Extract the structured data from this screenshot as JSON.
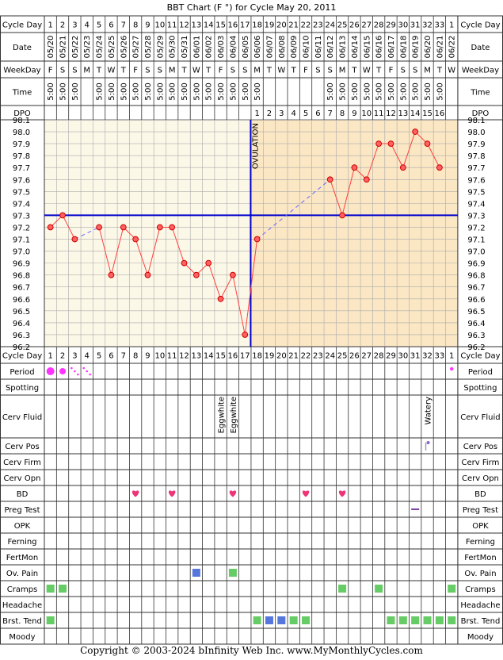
{
  "title": "BBT Chart (F °) for Cycle May 20, 2011",
  "ovulation_label": "OVULATION",
  "copyright": "Copyright © 2003-2024 bInfinity Web Inc.    www.MyMonthlyCycles.com",
  "row_labels": {
    "cycle_day": "Cycle Day",
    "date": "Date",
    "weekday": "WeekDay",
    "time": "Time",
    "dpo": "DPO",
    "period": "Period",
    "spotting": "Spotting",
    "cerv_fluid": "Cerv Fluid",
    "cerv_pos": "Cerv Pos",
    "cerv_firm": "Cerv Firm",
    "cerv_opn": "Cerv Opn",
    "bd": "BD",
    "preg_test": "Preg Test",
    "opk": "OPK",
    "ferning": "Ferning",
    "fertmon": "FertMon",
    "ov_pain": "Ov. Pain",
    "cramps": "Cramps",
    "headache": "Headache",
    "brst_tend": "Brst. Tend",
    "moody": "Moody"
  },
  "columns": {
    "cycle_days": [
      "1",
      "2",
      "3",
      "4",
      "5",
      "6",
      "7",
      "8",
      "9",
      "10",
      "11",
      "12",
      "13",
      "14",
      "15",
      "16",
      "17",
      "18",
      "19",
      "20",
      "21",
      "22",
      "23",
      "24",
      "25",
      "26",
      "27",
      "28",
      "29",
      "30",
      "31",
      "32",
      "33",
      "1"
    ],
    "dates": [
      "05/20",
      "05/21",
      "05/22",
      "05/23",
      "05/24",
      "05/25",
      "05/26",
      "05/27",
      "05/28",
      "05/29",
      "05/30",
      "05/31",
      "06/01",
      "06/02",
      "06/03",
      "06/04",
      "06/05",
      "06/06",
      "06/07",
      "06/08",
      "06/09",
      "06/10",
      "06/11",
      "06/12",
      "06/13",
      "06/14",
      "06/15",
      "06/16",
      "06/17",
      "06/18",
      "06/19",
      "06/20",
      "06/21",
      "06/22"
    ],
    "weekdays": [
      "F",
      "S",
      "S",
      "M",
      "T",
      "W",
      "T",
      "F",
      "S",
      "S",
      "M",
      "T",
      "W",
      "T",
      "F",
      "S",
      "S",
      "M",
      "T",
      "W",
      "T",
      "F",
      "S",
      "S",
      "M",
      "T",
      "W",
      "T",
      "F",
      "S",
      "S",
      "M",
      "T",
      "W"
    ],
    "times": [
      "5:00",
      "5:00",
      "5:00",
      "",
      "5:00",
      "5:00",
      "5:00",
      "5:00",
      "5:00",
      "5:00",
      "5:00",
      "5:00",
      "5:00",
      "5:00",
      "5:00",
      "5:00",
      "5:00",
      "5:00",
      "",
      "",
      "",
      "",
      "",
      "5:00",
      "5:00",
      "5:00",
      "5:00",
      "5:00",
      "5:00",
      "5:00",
      "5:00",
      "5:00",
      "5:00",
      ""
    ],
    "dpo": [
      "",
      "",
      "",
      "",
      "",
      "",
      "",
      "",
      "",
      "",
      "",
      "",
      "",
      "",
      "",
      "",
      "",
      "1",
      "2",
      "3",
      "4",
      "5",
      "6",
      "7",
      "8",
      "9",
      "10",
      "11",
      "12",
      "13",
      "14",
      "15",
      "16",
      ""
    ]
  },
  "chart_data": {
    "type": "line",
    "title": "BBT Chart (F °) for Cycle May 20, 2011",
    "ylim": [
      96.2,
      98.1
    ],
    "y_ticks": [
      "98.1",
      "98.0",
      "97.9",
      "97.8",
      "97.7",
      "97.6",
      "97.5",
      "97.4",
      "97.3",
      "97.2",
      "97.1",
      "97.0",
      "96.9",
      "96.8",
      "96.7",
      "96.6",
      "96.5",
      "96.4",
      "96.3",
      "96.2"
    ],
    "grid": true,
    "temperatures": [
      97.2,
      97.3,
      97.1,
      null,
      97.2,
      96.8,
      97.2,
      97.1,
      96.8,
      97.2,
      97.2,
      96.9,
      96.8,
      96.9,
      96.6,
      96.8,
      96.3,
      97.1,
      null,
      null,
      null,
      null,
      null,
      97.6,
      97.3,
      97.7,
      97.6,
      97.9,
      97.9,
      97.7,
      98.0,
      97.9,
      97.7,
      null
    ],
    "coverline": 97.3,
    "ovulation_day": 17
  },
  "observations": {
    "period": [
      {
        "day": 1,
        "level": "heavy"
      },
      {
        "day": 2,
        "level": "medium"
      },
      {
        "day": 3,
        "level": "spotting"
      },
      {
        "day": 4,
        "level": "spotting"
      },
      {
        "day": 34,
        "level": "light"
      }
    ],
    "cerv_fluid": [
      {
        "day": 15,
        "text": "Eggwhite"
      },
      {
        "day": 16,
        "text": "Eggwhite"
      },
      {
        "day": 32,
        "text": "Watery"
      }
    ],
    "cerv_pos": [
      32
    ],
    "bd": [
      8,
      11,
      16,
      22,
      25
    ],
    "preg_test": [
      31
    ],
    "ov_pain": [
      {
        "day": 13,
        "kind": "blue"
      },
      {
        "day": 16,
        "kind": "green"
      }
    ],
    "cramps": [
      1,
      2,
      25,
      28,
      34
    ],
    "brst_tend": [
      {
        "day": 1,
        "kind": "green"
      },
      {
        "day": 18,
        "kind": "green"
      },
      {
        "day": 19,
        "kind": "blue"
      },
      {
        "day": 20,
        "kind": "blue"
      },
      {
        "day": 21,
        "kind": "green"
      },
      {
        "day": 22,
        "kind": "green"
      },
      {
        "day": 29,
        "kind": "green"
      },
      {
        "day": 30,
        "kind": "green"
      },
      {
        "day": 31,
        "kind": "green"
      },
      {
        "day": 32,
        "kind": "green"
      },
      {
        "day": 33,
        "kind": "green"
      },
      {
        "day": 34,
        "kind": "green"
      }
    ]
  },
  "colors": {
    "pre_ovulation_bg": "#fcf8e8",
    "post_ovulation_bg": "#fbe7c4",
    "line": "#ff4040",
    "coverline": "#0000cc",
    "gap_line": "#6666ff",
    "period": "#ff33ff",
    "heart": "#ee3377",
    "green_mark": "#66cc66",
    "blue_mark": "#5577dd",
    "preg_test": "#7744aa"
  }
}
